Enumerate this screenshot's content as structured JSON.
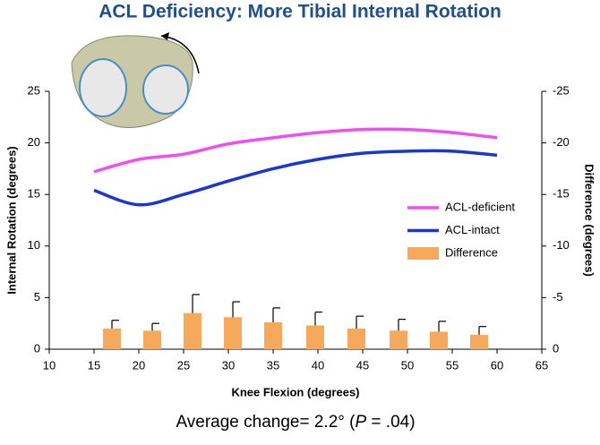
{
  "chart_data": {
    "type": "line",
    "title": "ACL Deficiency: More Tibial Internal Rotation",
    "xlabel": "Knee Flexion (degrees)",
    "ylabel": "Internal Rotation (degrees)",
    "y2label": "Difference (degrees)",
    "annotation": [
      "Average change= 2.2° (",
      "P",
      " = .04)"
    ],
    "xlim": [
      10,
      65
    ],
    "xticks": [
      10,
      15,
      20,
      25,
      30,
      35,
      40,
      45,
      50,
      55,
      60,
      65
    ],
    "ylim": [
      0,
      25
    ],
    "yticks": [
      0,
      5,
      10,
      15,
      20,
      25
    ],
    "y2lim": [
      0,
      -25
    ],
    "y2ticks": [
      0,
      -5,
      -10,
      -15,
      -20,
      -25
    ],
    "legend": "right",
    "series": [
      {
        "name": "ACL-deficient",
        "color": "#f04ef0",
        "x": [
          15,
          20,
          25,
          30,
          35,
          40,
          45,
          50,
          55,
          60
        ],
        "values": [
          17.2,
          18.4,
          18.9,
          19.9,
          20.5,
          21.0,
          21.3,
          21.3,
          21.0,
          20.5
        ]
      },
      {
        "name": "ACL-intact",
        "color": "#1c36d0",
        "x": [
          15,
          20,
          25,
          30,
          35,
          40,
          45,
          50,
          55,
          60
        ],
        "values": [
          15.4,
          14.0,
          15.0,
          16.3,
          17.5,
          18.4,
          19.0,
          19.2,
          19.2,
          18.8
        ]
      },
      {
        "name": "Difference",
        "type": "bar",
        "axis": "y2",
        "color": "#f6a95a",
        "x": [
          17,
          21.5,
          26,
          30.5,
          35,
          39.7,
          44.3,
          49,
          53.5,
          58
        ],
        "values": [
          -2.0,
          -1.8,
          -3.5,
          -3.1,
          -2.6,
          -2.3,
          -2.0,
          -1.8,
          -1.7,
          -1.4
        ],
        "errors": [
          0.8,
          0.7,
          1.8,
          1.5,
          1.4,
          1.3,
          1.2,
          1.1,
          1.0,
          0.8
        ]
      }
    ]
  }
}
